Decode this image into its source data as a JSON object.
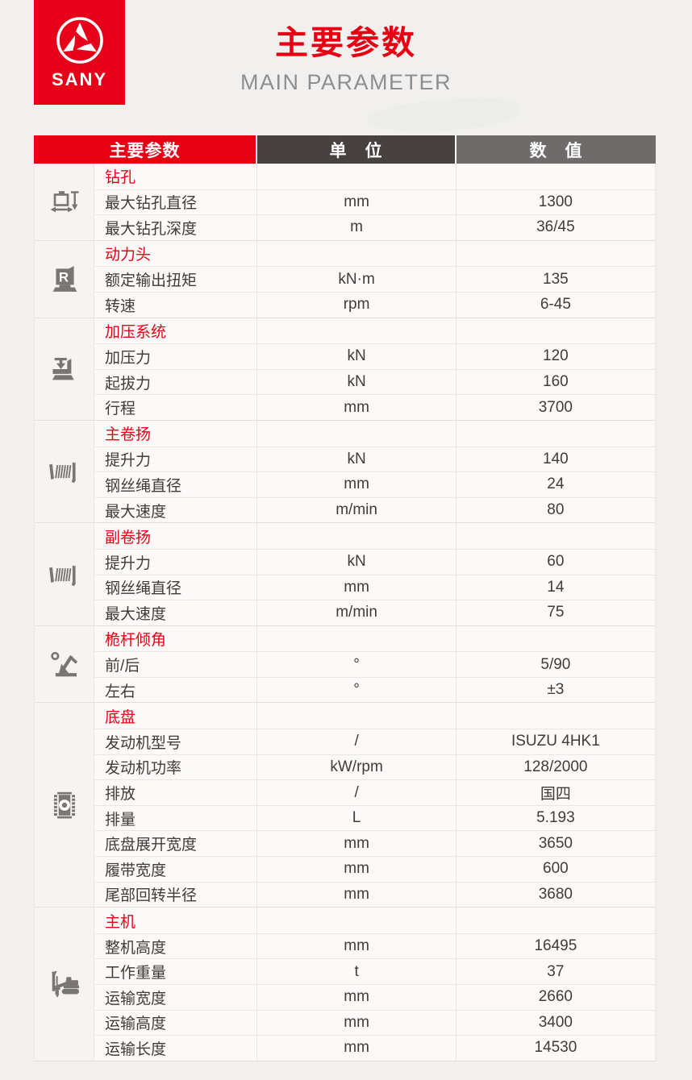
{
  "page": {
    "logo": {
      "brand": "SANY"
    },
    "title": "主要参数",
    "subtitle": "MAIN PARAMETER"
  },
  "colors": {
    "brand_red": "#e60014",
    "unit_header_dark": "#474140",
    "value_header_gray": "#6f6b6a",
    "icon_gray": "#7b7572"
  },
  "table": {
    "headers": {
      "param": "主要参数",
      "unit": "单　位",
      "value": "数　值"
    },
    "groups": [
      {
        "section": "钻孔",
        "icon": "drill-hole-icon",
        "rows": [
          {
            "label": "最大钻孔直径",
            "unit": "mm",
            "value": "1300"
          },
          {
            "label": "最大钻孔深度",
            "unit": "m",
            "value": "36/45"
          }
        ]
      },
      {
        "section": "动力头",
        "icon": "rotary-head-icon",
        "rows": [
          {
            "label": "额定输出扭矩",
            "unit": "kN·m",
            "value": "135"
          },
          {
            "label": "转速",
            "unit": "rpm",
            "value": "6-45"
          }
        ]
      },
      {
        "section": "加压系统",
        "icon": "crowd-system-icon",
        "rows": [
          {
            "label": "加压力",
            "unit": "kN",
            "value": "120"
          },
          {
            "label": "起拔力",
            "unit": "kN",
            "value": "160"
          },
          {
            "label": "行程",
            "unit": "mm",
            "value": "3700"
          }
        ]
      },
      {
        "section": "主卷扬",
        "icon": "main-winch-icon",
        "rows": [
          {
            "label": "提升力",
            "unit": "kN",
            "value": "140"
          },
          {
            "label": "钢丝绳直径",
            "unit": "mm",
            "value": "24"
          },
          {
            "label": "最大速度",
            "unit": "m/min",
            "value": "80"
          }
        ]
      },
      {
        "section": "副卷扬",
        "icon": "aux-winch-icon",
        "rows": [
          {
            "label": "提升力",
            "unit": "kN",
            "value": "60"
          },
          {
            "label": "钢丝绳直径",
            "unit": "mm",
            "value": "14"
          },
          {
            "label": "最大速度",
            "unit": "m/min",
            "value": "75"
          }
        ]
      },
      {
        "section": "桅杆倾角",
        "icon": "mast-angle-icon",
        "rows": [
          {
            "label": "前/后",
            "unit": "°",
            "value": "5/90"
          },
          {
            "label": "左右",
            "unit": "°",
            "value": "±3"
          }
        ]
      },
      {
        "section": "底盘",
        "icon": "crawler-track-icon",
        "rows": [
          {
            "label": "发动机型号",
            "unit": "/",
            "value": "ISUZU 4HK1"
          },
          {
            "label": "发动机功率",
            "unit": "kW/rpm",
            "value": "128/2000"
          },
          {
            "label": "排放",
            "unit": "/",
            "value": "国四"
          },
          {
            "label": "排量",
            "unit": "L",
            "value": "5.193"
          },
          {
            "label": "底盘展开宽度",
            "unit": "mm",
            "value": "3650"
          },
          {
            "label": "履带宽度",
            "unit": "mm",
            "value": "600"
          },
          {
            "label": "尾部回转半径",
            "unit": "mm",
            "value": "3680"
          }
        ]
      },
      {
        "section": "主机",
        "icon": "rig-silhouette-icon",
        "rows": [
          {
            "label": "整机高度",
            "unit": "mm",
            "value": "16495"
          },
          {
            "label": "工作重量",
            "unit": "t",
            "value": "37"
          },
          {
            "label": "运输宽度",
            "unit": "mm",
            "value": "2660"
          },
          {
            "label": "运输高度",
            "unit": "mm",
            "value": "3400"
          },
          {
            "label": "运输长度",
            "unit": "mm",
            "value": "14530"
          }
        ]
      }
    ]
  }
}
